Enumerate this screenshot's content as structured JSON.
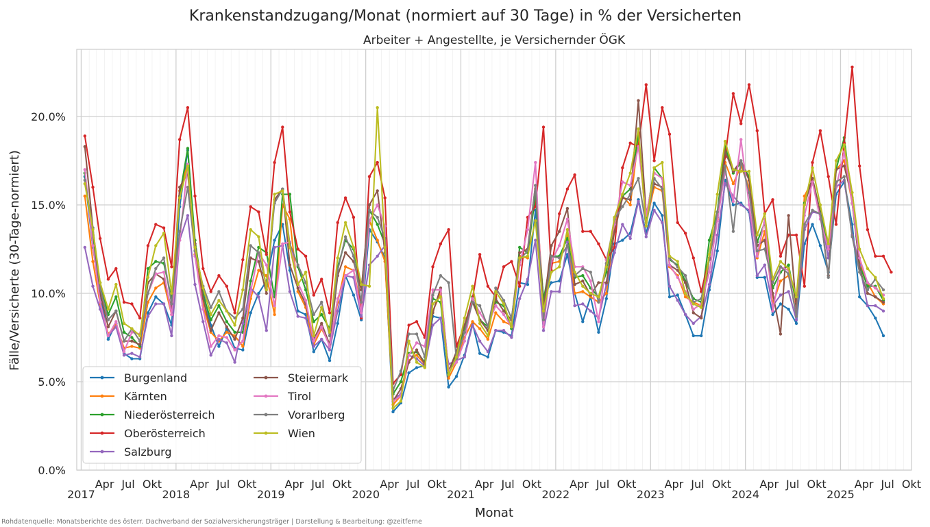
{
  "chart_data": {
    "type": "line",
    "title": "Krankenstandzugang/Monat (normiert auf 30 Tage) in % der Versicherten",
    "subtitle": "Arbeiter + Angestellte, je Versichernder ÖGK",
    "xlabel": "Monat",
    "ylabel": "Fälle/Versicherte (30-Tage-normiert)",
    "ylim": [
      0,
      23.8
    ],
    "yticks": [
      0,
      5,
      10,
      15,
      20
    ],
    "ytick_labels": [
      "0.0%",
      "5.0%",
      "10.0%",
      "15.0%",
      "20.0%"
    ],
    "xlim": [
      "2016-12-15",
      "2025-10-01"
    ],
    "x_year_ticks": [
      {
        "date": "2017-01-01",
        "label": "2017"
      },
      {
        "date": "2018-01-01",
        "label": "2018"
      },
      {
        "date": "2019-01-01",
        "label": "2019"
      },
      {
        "date": "2020-01-01",
        "label": "2020"
      },
      {
        "date": "2021-01-01",
        "label": "2021"
      },
      {
        "date": "2022-01-01",
        "label": "2022"
      },
      {
        "date": "2023-01-01",
        "label": "2023"
      },
      {
        "date": "2024-01-01",
        "label": "2024"
      },
      {
        "date": "2025-01-01",
        "label": "2025"
      }
    ],
    "x_month_tick_labels": [
      "Apr",
      "Jul",
      "Okt"
    ],
    "grid": true,
    "legend_position": "lower-left",
    "x_start": "2017-01",
    "series": [
      {
        "name": "Burgenland",
        "color": "#1f77b4",
        "values": [
          16.6,
          12.6,
          10.0,
          7.4,
          8.3,
          6.6,
          6.3,
          6.3,
          8.9,
          9.8,
          9.4,
          8.2,
          14.9,
          18.1,
          12.8,
          10.1,
          8.2,
          7.0,
          8.0,
          6.9,
          6.8,
          8.9,
          10.0,
          10.7,
          13.0,
          13.9,
          11.3,
          9.0,
          8.8,
          6.7,
          7.4,
          6.2,
          8.3,
          11.0,
          9.9,
          8.5,
          13.6,
          12.9,
          12.0,
          3.3,
          3.8,
          5.5,
          5.8,
          5.9,
          8.7,
          8.6,
          4.7,
          5.3,
          6.5,
          8.3,
          6.6,
          6.4,
          7.9,
          7.8,
          7.6,
          10.6,
          10.5,
          14.7,
          9.8,
          10.6,
          10.7,
          12.2,
          10.0,
          8.4,
          9.8,
          7.8,
          9.7,
          12.8,
          13.0,
          13.4,
          15.3,
          13.4,
          15.1,
          14.4,
          9.8,
          9.9,
          8.8,
          7.6,
          7.6,
          10.2,
          12.4,
          16.4,
          15.0,
          15.1,
          14.6,
          10.9,
          10.9,
          8.8,
          9.4,
          9.1,
          8.3,
          12.8,
          13.9,
          12.7,
          11.2,
          15.6,
          16.3,
          13.9,
          9.8,
          9.3,
          8.6,
          7.6
        ]
      },
      {
        "name": "Kärnten",
        "color": "#ff7f0e",
        "values": [
          15.5,
          11.8,
          9.4,
          7.7,
          8.2,
          6.9,
          7.0,
          6.9,
          9.5,
          10.3,
          10.6,
          8.8,
          15.8,
          17.3,
          12.2,
          9.3,
          7.8,
          7.3,
          7.8,
          7.6,
          7.0,
          9.7,
          11.3,
          11.0,
          8.8,
          15.0,
          14.2,
          10.1,
          9.2,
          7.1,
          8.0,
          7.1,
          9.5,
          11.5,
          11.3,
          9.2,
          14.1,
          13.0,
          11.8,
          3.7,
          4.2,
          6.2,
          6.5,
          6.0,
          9.0,
          10.0,
          5.2,
          6.1,
          7.5,
          8.4,
          8.0,
          7.4,
          8.9,
          8.4,
          8.2,
          12.1,
          12.0,
          15.9,
          9.6,
          11.7,
          11.8,
          13.3,
          10.0,
          10.1,
          9.8,
          9.5,
          10.0,
          13.8,
          15.5,
          15.0,
          18.8,
          14.0,
          16.0,
          15.8,
          11.5,
          11.0,
          9.8,
          9.5,
          9.3,
          12.0,
          14.2,
          17.4,
          16.2,
          17.2,
          16.0,
          12.0,
          13.5,
          9.4,
          10.7,
          11.0,
          9.0,
          15.5,
          16.4,
          14.6,
          12.7,
          17.0,
          17.5,
          15.1,
          11.7,
          10.6,
          9.8,
          9.4
        ]
      },
      {
        "name": "Niederösterreich",
        "color": "#2ca02c",
        "values": [
          16.8,
          13.0,
          10.6,
          8.8,
          9.8,
          7.8,
          7.5,
          7.0,
          11.4,
          11.8,
          11.7,
          9.7,
          15.5,
          18.2,
          13.0,
          9.9,
          8.5,
          9.3,
          8.4,
          7.8,
          7.8,
          10.7,
          12.6,
          12.3,
          9.8,
          15.6,
          15.6,
          11.5,
          10.2,
          8.4,
          8.8,
          8.0,
          11.5,
          13.0,
          12.5,
          10.2,
          14.7,
          13.9,
          12.8,
          4.3,
          5.0,
          6.6,
          6.7,
          6.1,
          9.7,
          9.5,
          5.5,
          6.6,
          8.0,
          9.8,
          8.5,
          8.1,
          9.5,
          9.3,
          8.0,
          12.6,
          12.3,
          15.5,
          9.6,
          12.1,
          12.1,
          13.1,
          10.9,
          11.0,
          10.3,
          9.8,
          11.2,
          14.1,
          15.5,
          15.9,
          19.0,
          14.2,
          17.1,
          16.5,
          11.9,
          11.6,
          10.7,
          9.7,
          9.5,
          13.0,
          14.6,
          18.3,
          16.8,
          17.4,
          16.6,
          12.9,
          14.0,
          10.3,
          11.2,
          11.6,
          9.4,
          15.1,
          16.5,
          14.6,
          12.5,
          17.0,
          18.8,
          15.1,
          11.6,
          10.4,
          10.4,
          9.6
        ]
      },
      {
        "name": "Oberösterreich",
        "color": "#d62728",
        "values": [
          18.9,
          16.0,
          13.1,
          10.8,
          11.4,
          9.5,
          9.4,
          8.6,
          12.7,
          13.9,
          13.7,
          11.5,
          18.7,
          20.5,
          15.5,
          11.4,
          10.1,
          11.0,
          10.4,
          8.9,
          11.9,
          14.9,
          14.6,
          12.2,
          17.4,
          19.4,
          14.6,
          12.5,
          12.1,
          9.9,
          10.8,
          8.9,
          14.0,
          15.4,
          14.3,
          8.6,
          16.6,
          17.4,
          15.4,
          4.9,
          5.4,
          8.2,
          8.4,
          7.5,
          11.5,
          12.8,
          13.6,
          7.0,
          8.2,
          9.7,
          12.2,
          10.4,
          9.8,
          11.5,
          11.8,
          10.4,
          14.3,
          14.9,
          19.4,
          11.3,
          14.5,
          15.9,
          16.7,
          13.5,
          13.5,
          12.8,
          11.9,
          12.6,
          17.1,
          18.5,
          18.3,
          21.8,
          17.5,
          20.5,
          19.0,
          14.0,
          13.4,
          12.0,
          10.1,
          12.0,
          14.4,
          17.7,
          21.3,
          19.6,
          21.8,
          19.2,
          14.5,
          15.3,
          12.1,
          13.3,
          13.3,
          10.4,
          17.4,
          19.2,
          16.6,
          13.9,
          18.5,
          22.8,
          17.2,
          13.6,
          12.1,
          12.1,
          11.2
        ]
      },
      {
        "name": "Salzburg",
        "color": "#9467bd",
        "values": [
          12.6,
          10.4,
          9.1,
          7.6,
          8.1,
          6.5,
          6.6,
          6.4,
          8.7,
          9.4,
          9.4,
          7.6,
          13.0,
          14.4,
          10.5,
          8.4,
          6.5,
          7.4,
          7.2,
          6.1,
          8.3,
          10.3,
          9.8,
          7.9,
          12.6,
          12.7,
          10.1,
          8.7,
          8.6,
          7.0,
          7.4,
          6.8,
          9.0,
          11.0,
          10.9,
          8.7,
          11.6,
          12.1,
          12.7,
          4.0,
          4.3,
          6.5,
          6.3,
          5.9,
          8.2,
          8.6,
          6.0,
          6.2,
          6.4,
          8.2,
          7.3,
          6.7,
          7.9,
          7.9,
          7.5,
          9.7,
          10.8,
          13.0,
          7.9,
          10.1,
          10.1,
          12.9,
          9.3,
          9.4,
          9.0,
          8.6,
          10.5,
          12.3,
          13.9,
          13.1,
          15.2,
          13.2,
          14.7,
          14.0,
          10.4,
          9.6,
          8.8,
          8.3,
          8.7,
          10.5,
          13.3,
          16.2,
          15.5,
          15.0,
          14.7,
          11.0,
          11.6,
          9.3,
          9.9,
          10.1,
          8.5,
          13.6,
          14.6,
          14.5,
          12.0,
          16.0,
          16.4,
          13.3,
          11.6,
          9.3,
          9.3,
          9.0
        ]
      },
      {
        "name": "Steiermark",
        "color": "#8c564b",
        "values": [
          18.3,
          13.7,
          10.0,
          8.1,
          9.0,
          7.3,
          7.3,
          7.1,
          10.6,
          11.1,
          10.8,
          9.1,
          16.0,
          16.8,
          12.8,
          9.7,
          7.9,
          8.9,
          8.1,
          7.4,
          8.6,
          12.0,
          11.8,
          10.0,
          15.3,
          15.9,
          11.6,
          10.3,
          9.4,
          7.4,
          8.3,
          7.1,
          11.0,
          12.3,
          11.8,
          10.2,
          15.0,
          15.8,
          12.3,
          3.9,
          4.6,
          6.1,
          6.8,
          6.0,
          8.9,
          10.3,
          5.6,
          6.7,
          8.2,
          9.5,
          8.5,
          7.9,
          9.7,
          9.0,
          8.5,
          12.3,
          12.5,
          16.1,
          9.1,
          12.7,
          13.5,
          14.8,
          10.5,
          10.7,
          9.9,
          10.6,
          10.6,
          13.5,
          15.4,
          15.3,
          20.9,
          14.5,
          16.2,
          16.0,
          11.6,
          11.3,
          10.6,
          8.9,
          8.6,
          12.0,
          14.3,
          18.0,
          16.9,
          17.5,
          16.4,
          12.7,
          13.0,
          10.0,
          7.7,
          14.4,
          9.1,
          15.0,
          16.5,
          14.5,
          11.0,
          17.0,
          17.2,
          15.4,
          11.4,
          10.0,
          9.8,
          9.5
        ]
      },
      {
        "name": "Tirol",
        "color": "#e377c2",
        "values": [
          17.0,
          12.7,
          9.5,
          7.6,
          8.4,
          6.7,
          7.8,
          7.7,
          10.0,
          11.1,
          11.2,
          8.8,
          13.0,
          17.3,
          12.1,
          9.1,
          7.0,
          7.6,
          7.5,
          6.8,
          7.3,
          10.1,
          12.3,
          11.6,
          9.3,
          12.8,
          12.9,
          10.6,
          9.6,
          7.3,
          8.1,
          7.0,
          9.7,
          11.0,
          11.3,
          8.9,
          14.1,
          15.0,
          13.8,
          3.9,
          4.2,
          6.5,
          7.2,
          7.0,
          10.2,
          10.2,
          5.6,
          6.1,
          7.3,
          9.7,
          8.9,
          8.2,
          9.3,
          8.8,
          8.1,
          11.6,
          13.6,
          17.4,
          8.1,
          11.8,
          12.7,
          14.2,
          11.5,
          11.5,
          10.7,
          8.4,
          11.9,
          13.9,
          16.3,
          16.1,
          18.3,
          14.4,
          16.8,
          16.5,
          11.6,
          10.9,
          10.1,
          9.1,
          9.4,
          11.2,
          14.1,
          16.9,
          15.2,
          18.7,
          15.0,
          12.1,
          14.2,
          9.0,
          11.5,
          11.3,
          8.7,
          14.4,
          16.3,
          14.2,
          12.5,
          16.0,
          18.0,
          15.1,
          12.0,
          10.6,
          10.3,
          9.9
        ]
      },
      {
        "name": "Vorarlberg",
        "color": "#7f7f7f",
        "values": [
          16.4,
          13.7,
          10.3,
          8.5,
          9.0,
          7.3,
          8.0,
          7.3,
          10.0,
          11.4,
          12.0,
          9.4,
          13.5,
          16.0,
          12.4,
          10.4,
          9.2,
          10.1,
          9.0,
          8.6,
          9.1,
          12.7,
          12.3,
          10.4,
          15.1,
          15.9,
          12.8,
          11.6,
          10.6,
          8.8,
          9.5,
          7.6,
          11.3,
          13.2,
          12.1,
          9.5,
          14.7,
          14.3,
          13.1,
          4.5,
          5.6,
          7.7,
          7.7,
          6.4,
          9.9,
          11.0,
          10.6,
          6.3,
          7.8,
          9.5,
          9.3,
          8.1,
          10.3,
          9.6,
          8.6,
          11.9,
          12.4,
          16.1,
          8.5,
          12.1,
          12.0,
          12.7,
          11.0,
          11.4,
          11.2,
          9.5,
          11.7,
          14.2,
          14.9,
          15.6,
          16.5,
          13.8,
          16.5,
          15.9,
          12.0,
          11.5,
          11.0,
          9.5,
          9.7,
          11.9,
          14.6,
          17.2,
          13.5,
          17.5,
          15.7,
          12.4,
          12.5,
          10.6,
          11.5,
          11.1,
          8.7,
          13.9,
          14.7,
          14.5,
          10.9,
          16.3,
          16.6,
          13.2,
          11.2,
          10.2,
          10.8,
          10.2
        ]
      },
      {
        "name": "Wien",
        "color": "#bcbd22",
        "values": [
          16.2,
          13.6,
          10.6,
          9.1,
          10.5,
          8.3,
          8.0,
          7.6,
          10.9,
          12.7,
          13.4,
          10.0,
          15.4,
          17.2,
          12.6,
          10.3,
          8.8,
          9.6,
          9.0,
          8.2,
          10.2,
          13.6,
          13.2,
          10.2,
          15.6,
          15.8,
          12.6,
          10.5,
          11.2,
          7.6,
          9.2,
          7.8,
          12.0,
          14.0,
          12.6,
          10.5,
          10.4,
          20.5,
          12.6,
          3.5,
          3.9,
          7.3,
          6.1,
          5.8,
          9.4,
          9.8,
          5.4,
          6.4,
          8.6,
          10.4,
          8.3,
          7.6,
          10.1,
          9.4,
          8.1,
          12.0,
          12.1,
          14.1,
          9.0,
          11.2,
          11.5,
          13.6,
          11.2,
          10.4,
          10.0,
          9.8,
          11.5,
          14.3,
          15.6,
          16.8,
          19.3,
          13.8,
          17.1,
          17.4,
          12.1,
          11.8,
          10.0,
          9.4,
          9.2,
          12.2,
          15.6,
          18.6,
          17.0,
          16.9,
          16.9,
          13.3,
          14.5,
          10.8,
          11.8,
          11.4,
          9.8,
          15.0,
          17.1,
          15.0,
          12.8,
          17.5,
          18.4,
          15.7,
          12.5,
          11.4,
          10.9,
          9.7
        ]
      }
    ]
  },
  "footer": {
    "source": "Rohdatenquelle: Monatsberichte des österr. Dachverband der Sozialversicherungsträger | Darstellung & Bearbeitung: @zeitferne"
  }
}
